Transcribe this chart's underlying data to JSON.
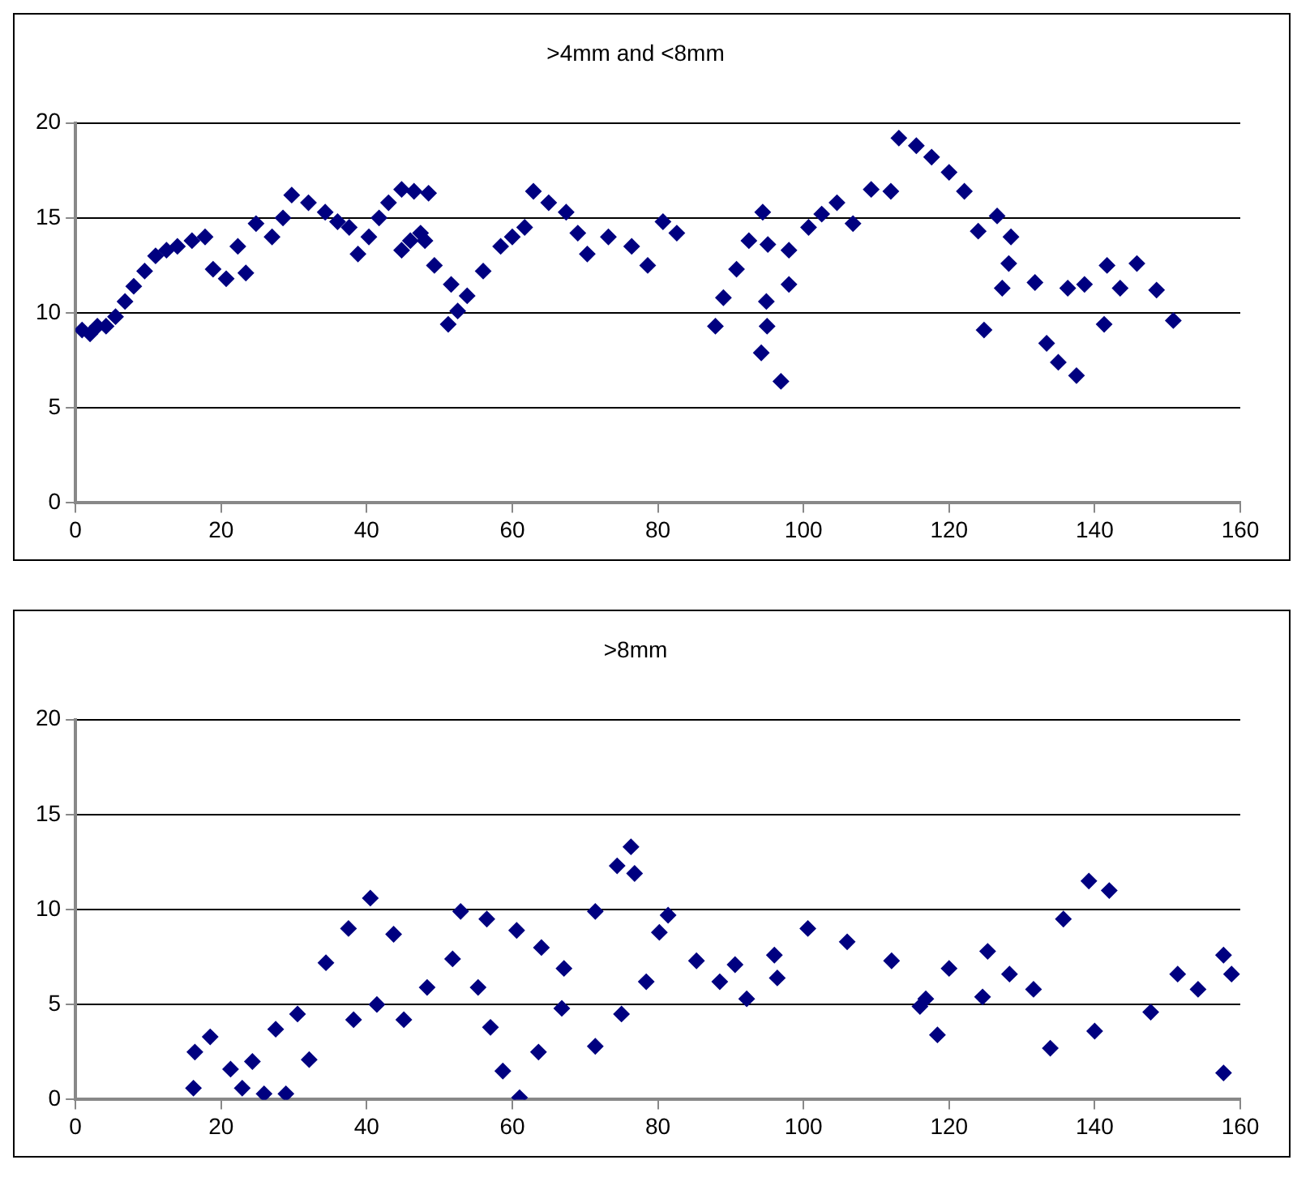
{
  "chart_data": [
    {
      "type": "scatter",
      "title": ">4mm and <8mm",
      "xlim": [
        0,
        160
      ],
      "xticks": [
        0,
        20,
        40,
        60,
        80,
        100,
        120,
        140,
        160
      ],
      "ylim": [
        0,
        20
      ],
      "yticks": [
        0,
        5,
        10,
        15,
        20
      ],
      "grid": "y",
      "legend": false,
      "marker": "diamond",
      "series": [
        {
          "color": "#000080",
          "x": [
            0.9,
            2,
            3,
            4.2,
            5.5,
            6.8,
            8,
            9.5,
            11,
            12.5,
            14,
            16,
            17.8,
            18.9,
            20.7,
            22.3,
            23.4,
            24.8,
            27,
            28.5,
            29.7,
            32,
            34.3,
            36,
            37.6,
            38.8,
            40.3,
            41.7,
            43,
            44.8,
            46.5,
            48.5,
            44.8,
            46,
            47.4,
            48,
            49.3,
            51.6,
            51.2,
            52.5,
            53.8,
            56,
            58.4,
            60,
            61.7,
            62.9,
            65,
            67.4,
            69,
            70.3,
            73.2,
            76.4,
            78.6,
            80.7,
            82.6,
            87.9,
            89,
            90.8,
            92.5,
            94.4,
            95.1,
            94.9,
            95,
            94.2,
            96.9,
            98,
            98,
            100.7,
            102.5,
            104.6,
            106.8,
            109.3,
            112,
            113.1,
            115.5,
            117.6,
            120,
            122.1,
            124,
            126.6,
            128.5,
            128.2,
            131.8,
            124.8,
            127.3,
            133.4,
            136.3,
            135,
            137.5,
            138.6,
            141.3,
            141.7,
            143.5,
            145.8,
            148.5,
            150.8
          ],
          "values": [
            9.1,
            8.9,
            9.3,
            9.3,
            9.8,
            10.6,
            11.4,
            12.2,
            13,
            13.3,
            13.5,
            13.8,
            14,
            12.3,
            11.8,
            13.5,
            12.1,
            14.7,
            14,
            15,
            16.2,
            15.8,
            15.3,
            14.8,
            14.5,
            13.1,
            14,
            15,
            15.8,
            16.5,
            16.4,
            16.3,
            13.3,
            13.8,
            14.2,
            13.8,
            12.5,
            11.5,
            9.4,
            10.1,
            10.9,
            12.2,
            13.5,
            14,
            14.5,
            16.4,
            15.8,
            15.3,
            14.2,
            13.1,
            14,
            13.5,
            12.5,
            14.8,
            14.2,
            9.3,
            10.8,
            12.3,
            13.8,
            15.3,
            13.6,
            10.6,
            9.3,
            7.9,
            6.4,
            11.5,
            13.3,
            14.5,
            15.2,
            15.8,
            14.7,
            16.5,
            16.4,
            19.2,
            18.8,
            18.2,
            17.4,
            16.4,
            14.3,
            15.1,
            14,
            12.6,
            11.6,
            9.1,
            11.3,
            8.4,
            11.3,
            7.4,
            6.7,
            11.5,
            9.4,
            12.5,
            11.3,
            12.6,
            11.2,
            9.6
          ]
        }
      ]
    },
    {
      "type": "scatter",
      "title": ">8mm",
      "xlim": [
        0,
        160
      ],
      "xticks": [
        0,
        20,
        40,
        60,
        80,
        100,
        120,
        140,
        160
      ],
      "ylim": [
        0,
        20
      ],
      "yticks": [
        0,
        5,
        10,
        15,
        20
      ],
      "grid": "y",
      "legend": false,
      "marker": "diamond",
      "series": [
        {
          "color": "#000080",
          "x": [
            16.2,
            16.4,
            18.5,
            21.3,
            22.9,
            24.3,
            25.9,
            28.9,
            32.1,
            27.5,
            30.5,
            34.4,
            37.5,
            40.5,
            43.7,
            38.2,
            41.4,
            45.1,
            48.3,
            51.8,
            55.3,
            57,
            58.7,
            61,
            63.6,
            66.8,
            52.9,
            56.5,
            60.6,
            64,
            67.1,
            71.4,
            74.4,
            76.3,
            71.4,
            75,
            78.4,
            76.8,
            80.2,
            81.4,
            85.3,
            88.5,
            92.2,
            90.6,
            96.4,
            96,
            100.6,
            106,
            112.1,
            116,
            118.4,
            116.8,
            120,
            125.3,
            124.6,
            128.3,
            131.6,
            133.9,
            140,
            147.7,
            151.4,
            154.2,
            157.7,
            158.8,
            135.7,
            139.2,
            142,
            157.7
          ],
          "values": [
            0.6,
            2.5,
            3.3,
            1.6,
            0.6,
            2,
            0.3,
            0.3,
            2.1,
            3.7,
            4.5,
            7.2,
            9,
            10.6,
            8.7,
            4.2,
            5,
            4.2,
            5.9,
            7.4,
            5.9,
            3.8,
            1.5,
            0.1,
            2.5,
            4.8,
            9.9,
            9.5,
            8.9,
            8,
            6.9,
            9.9,
            12.3,
            13.3,
            2.8,
            4.5,
            6.2,
            11.9,
            8.8,
            9.7,
            7.3,
            6.2,
            5.3,
            7.1,
            6.4,
            7.6,
            9,
            8.3,
            7.3,
            4.9,
            3.4,
            5.3,
            6.9,
            7.8,
            5.4,
            6.6,
            5.8,
            2.7,
            3.6,
            4.6,
            6.6,
            5.8,
            7.6,
            6.6,
            9.5,
            11.5,
            11,
            1.4
          ]
        }
      ]
    }
  ]
}
